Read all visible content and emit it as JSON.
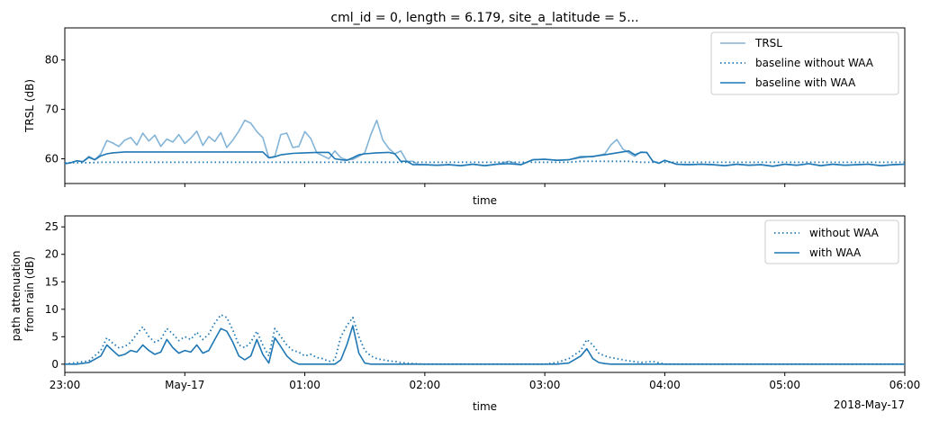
{
  "chart_data": [
    {
      "type": "line",
      "title": "cml_id = 0, length = 6.179, site_a_latitude = 5...",
      "xlabel": "time",
      "ylabel": "TRSL (dB)",
      "ylim": [
        55,
        86.5
      ],
      "yticks": [
        60,
        70,
        80
      ],
      "xlim": [
        0,
        7
      ],
      "x_unit": "hours after 2018-05-16 23:00",
      "legend_position": "top-right",
      "xtick_labels_visible": false,
      "series": [
        {
          "name": "TRSL",
          "color": "#83b4d8",
          "style": "solid",
          "x": [
            0,
            0.05,
            0.1,
            0.15,
            0.2,
            0.25,
            0.3,
            0.35,
            0.4,
            0.45,
            0.5,
            0.55,
            0.6,
            0.65,
            0.7,
            0.75,
            0.8,
            0.85,
            0.9,
            0.95,
            1.0,
            1.05,
            1.1,
            1.15,
            1.2,
            1.25,
            1.3,
            1.35,
            1.4,
            1.45,
            1.5,
            1.55,
            1.6,
            1.65,
            1.7,
            1.75,
            1.8,
            1.85,
            1.9,
            1.95,
            2.0,
            2.05,
            2.1,
            2.15,
            2.2,
            2.25,
            2.3,
            2.35,
            2.4,
            2.45,
            2.5,
            2.55,
            2.6,
            2.65,
            2.7,
            2.75,
            2.8,
            2.85,
            2.9,
            2.95,
            3.0,
            3.1,
            3.2,
            3.3,
            3.4,
            3.5,
            3.6,
            3.7,
            3.8,
            3.9,
            4.0,
            4.1,
            4.2,
            4.3,
            4.4,
            4.5,
            4.55,
            4.6,
            4.65,
            4.7,
            4.75,
            4.8,
            4.85,
            4.9,
            4.95,
            5.0,
            5.1,
            5.2,
            5.3,
            5.4,
            5.5,
            5.6,
            5.7,
            5.8,
            5.9,
            6.0,
            6.1,
            6.2,
            6.3,
            6.4,
            6.5,
            6.6,
            6.7,
            6.8,
            6.9,
            7.0
          ],
          "values": [
            59,
            59.2,
            59.6,
            59.4,
            60.5,
            59.8,
            61,
            63.7,
            63.2,
            62.5,
            63.8,
            64.3,
            62.8,
            65.2,
            63.6,
            64.8,
            62.5,
            64,
            63.4,
            64.9,
            63.1,
            64.2,
            65.6,
            62.7,
            64.5,
            63.5,
            65.3,
            62.3,
            63.8,
            65.6,
            67.8,
            67.2,
            65.5,
            64.3,
            60.2,
            60.5,
            64.9,
            65.2,
            62.3,
            62.5,
            65.5,
            64.1,
            61.2,
            60.6,
            60,
            61.6,
            60.2,
            59.8,
            59.9,
            60.5,
            61.2,
            64.9,
            67.8,
            63.8,
            62.1,
            61,
            61.6,
            59.5,
            59.5,
            58.8,
            58.8,
            58.7,
            58.8,
            58.6,
            58.9,
            58.6,
            58.9,
            59.5,
            58.8,
            59.8,
            59.9,
            59.7,
            59.8,
            60.5,
            60.4,
            61,
            62.8,
            63.9,
            62,
            61.2,
            60.5,
            61.4,
            61.3,
            59.5,
            59.1,
            59.7,
            58.9,
            58.8,
            58.9,
            58.8,
            58.6,
            58.9,
            58.7,
            58.8,
            58.5,
            58.9,
            58.7,
            59,
            58.6,
            58.9,
            58.7,
            58.8,
            58.9,
            58.6,
            58.8,
            58.9
          ]
        },
        {
          "name": "baseline without WAA",
          "color": "#1f77b4",
          "style": "dotted",
          "x": [
            0,
            0.2,
            0.3,
            4.2,
            4.3,
            4.7,
            4.8,
            7.0
          ],
          "values": [
            59.2,
            59.2,
            59.3,
            59.3,
            59.5,
            59.5,
            59.3,
            59.3
          ]
        },
        {
          "name": "baseline with WAA",
          "color": "#1f77b4",
          "style": "solid",
          "x": [
            0,
            0.05,
            0.1,
            0.15,
            0.2,
            0.25,
            0.3,
            0.35,
            0.4,
            0.45,
            0.5,
            0.6,
            0.7,
            0.8,
            0.9,
            1.0,
            1.1,
            1.2,
            1.3,
            1.4,
            1.5,
            1.55,
            1.6,
            1.65,
            1.7,
            1.75,
            1.8,
            1.9,
            2.0,
            2.1,
            2.2,
            2.25,
            2.3,
            2.35,
            2.4,
            2.45,
            2.5,
            2.6,
            2.7,
            2.75,
            2.8,
            2.85,
            2.9,
            2.95,
            3.0,
            3.1,
            3.2,
            3.3,
            3.4,
            3.5,
            3.6,
            3.7,
            3.8,
            3.9,
            4.0,
            4.1,
            4.2,
            4.3,
            4.4,
            4.5,
            4.6,
            4.7,
            4.75,
            4.8,
            4.85,
            4.9,
            4.95,
            5.0,
            5.1,
            5.2,
            5.3,
            5.4,
            5.5,
            5.6,
            5.7,
            5.8,
            5.9,
            6.0,
            6.1,
            6.2,
            6.3,
            6.4,
            6.5,
            6.6,
            6.7,
            6.8,
            6.9,
            7.0
          ],
          "values": [
            59,
            59.2,
            59.6,
            59.4,
            60.3,
            59.8,
            60.6,
            61,
            61.2,
            61.3,
            61.4,
            61.4,
            61.4,
            61.4,
            61.4,
            61.4,
            61.4,
            61.4,
            61.4,
            61.4,
            61.4,
            61.4,
            61.4,
            61.4,
            60.2,
            60.4,
            60.8,
            61.1,
            61.2,
            61.3,
            61.3,
            60,
            59.8,
            59.7,
            60.2,
            60.8,
            61,
            61.2,
            61.3,
            61,
            59.5,
            59.5,
            58.8,
            58.8,
            58.8,
            58.7,
            58.8,
            58.6,
            58.9,
            58.6,
            58.9,
            59,
            58.8,
            59.8,
            59.9,
            59.7,
            59.8,
            60.3,
            60.5,
            60.8,
            61.2,
            61.6,
            60.8,
            61.3,
            61.3,
            59.5,
            59.1,
            59.7,
            58.9,
            58.8,
            58.9,
            58.8,
            58.6,
            58.9,
            58.7,
            58.8,
            58.5,
            58.9,
            58.7,
            59,
            58.6,
            58.9,
            58.7,
            58.8,
            58.9,
            58.6,
            58.8,
            58.9
          ]
        }
      ]
    },
    {
      "type": "line",
      "title": "",
      "xlabel": "time",
      "ylabel": "path attenuation\nfrom rain (dB)",
      "ylim": [
        -1.5,
        27
      ],
      "yticks": [
        0,
        5,
        10,
        15,
        20,
        25
      ],
      "xlim": [
        0,
        7
      ],
      "x_unit": "hours after 2018-05-16 23:00",
      "xtick_labels": [
        "23:00",
        "May-17",
        "01:00",
        "02:00",
        "03:00",
        "04:00",
        "05:00",
        "06:00"
      ],
      "xtick_offset_label": "2018-May-17",
      "legend_position": "top-right",
      "series": [
        {
          "name": "without WAA",
          "color": "#1f77b4",
          "style": "dotted",
          "x": [
            0,
            0.1,
            0.2,
            0.3,
            0.35,
            0.4,
            0.45,
            0.5,
            0.55,
            0.6,
            0.65,
            0.7,
            0.75,
            0.8,
            0.85,
            0.9,
            0.95,
            1.0,
            1.05,
            1.1,
            1.15,
            1.2,
            1.25,
            1.3,
            1.35,
            1.4,
            1.45,
            1.5,
            1.55,
            1.6,
            1.65,
            1.7,
            1.75,
            1.8,
            1.85,
            1.9,
            1.95,
            2.0,
            2.05,
            2.1,
            2.15,
            2.2,
            2.25,
            2.3,
            2.35,
            2.4,
            2.45,
            2.5,
            2.55,
            2.6,
            2.65,
            2.7,
            2.75,
            2.8,
            2.9,
            3.0,
            3.1,
            4.0,
            4.1,
            4.2,
            4.3,
            4.35,
            4.4,
            4.45,
            4.5,
            4.55,
            4.6,
            4.7,
            4.8,
            4.9,
            5.0,
            5.1,
            7.0
          ],
          "values": [
            0,
            0.3,
            0.6,
            2.5,
            4.8,
            3.8,
            3,
            3.2,
            4,
            5.5,
            6.8,
            5,
            4,
            4.5,
            6.5,
            5.5,
            4.3,
            5,
            4.5,
            5.8,
            4.5,
            5.5,
            7.5,
            9,
            8.5,
            6.2,
            3.5,
            3,
            4,
            6,
            3.5,
            1.5,
            6.5,
            5,
            3.5,
            2.5,
            2.2,
            1.5,
            1.8,
            1.2,
            1,
            0.5,
            0.8,
            5,
            7,
            8.5,
            5,
            2.5,
            1.5,
            1,
            0.8,
            0.6,
            0.5,
            0.3,
            0.1,
            0,
            0,
            0,
            0.3,
            1,
            2.5,
            4.5,
            3.5,
            2,
            1.5,
            1.2,
            1,
            0.6,
            0.3,
            0.5,
            0,
            0,
            0
          ]
        },
        {
          "name": "with WAA",
          "color": "#1f77b4",
          "style": "solid",
          "x": [
            0,
            0.1,
            0.2,
            0.3,
            0.35,
            0.4,
            0.45,
            0.5,
            0.55,
            0.6,
            0.65,
            0.7,
            0.75,
            0.8,
            0.85,
            0.9,
            0.95,
            1.0,
            1.05,
            1.1,
            1.15,
            1.2,
            1.25,
            1.3,
            1.35,
            1.4,
            1.45,
            1.5,
            1.55,
            1.6,
            1.65,
            1.7,
            1.75,
            1.8,
            1.85,
            1.9,
            1.95,
            2.0,
            2.05,
            2.1,
            2.15,
            2.2,
            2.25,
            2.3,
            2.35,
            2.4,
            2.45,
            2.5,
            2.55,
            2.6,
            2.7,
            2.8,
            3.0,
            4.0,
            4.1,
            4.2,
            4.3,
            4.35,
            4.4,
            4.45,
            4.5,
            4.55,
            4.6,
            4.7,
            5.0,
            7.0
          ],
          "values": [
            0,
            0,
            0.3,
            1.5,
            3.5,
            2.5,
            1.5,
            1.8,
            2.5,
            2.2,
            3.5,
            2.5,
            1.8,
            2.2,
            4.5,
            3,
            2,
            2.5,
            2.2,
            3.5,
            2,
            2.5,
            4.5,
            6.5,
            6,
            4,
            1.5,
            0.8,
            1.5,
            4.5,
            1.8,
            0.2,
            4.8,
            3.2,
            1.5,
            0.5,
            0,
            0,
            0,
            0,
            0,
            0,
            0,
            0.8,
            3.5,
            7,
            2,
            0.2,
            0,
            0,
            0,
            0,
            0,
            0,
            0,
            0.2,
            1.5,
            2.8,
            1,
            0.3,
            0.1,
            0,
            0,
            0,
            0,
            0
          ]
        }
      ]
    }
  ]
}
